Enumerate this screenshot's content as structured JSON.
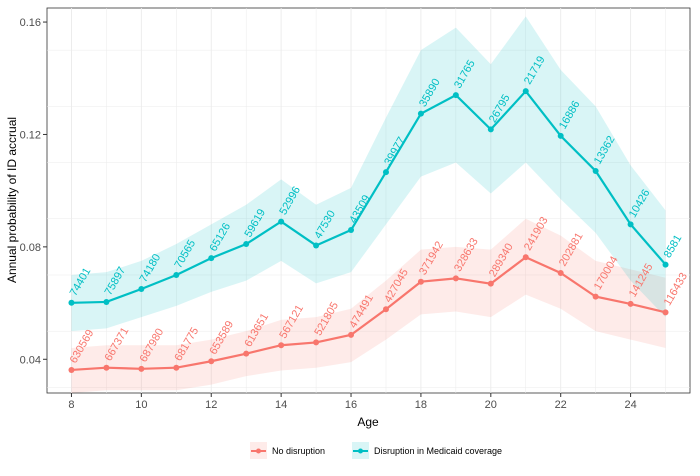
{
  "chart_data": {
    "type": "line",
    "title": "",
    "xlabel": "Age",
    "ylabel": "Annual probability of ID accrual",
    "xlim": [
      7.3,
      25.7
    ],
    "ylim": [
      0.028,
      0.165
    ],
    "xticks": [
      8,
      10,
      12,
      14,
      16,
      18,
      20,
      22,
      24
    ],
    "yticks": [
      0.04,
      0.08,
      0.12,
      0.16
    ],
    "ytick_labels": [
      "0.04",
      "0.08",
      "0.12",
      "0.16"
    ],
    "grid": true,
    "legend_position": "bottom",
    "x": [
      8,
      9,
      10,
      11,
      12,
      13,
      14,
      15,
      16,
      17,
      18,
      19,
      20,
      21,
      22,
      23,
      24,
      25
    ],
    "series": [
      {
        "name": "No disruption",
        "color": "#F8766D",
        "values": [
          0.0362,
          0.037,
          0.0366,
          0.037,
          0.0393,
          0.042,
          0.045,
          0.046,
          0.0487,
          0.0578,
          0.0676,
          0.0688,
          0.0669,
          0.0763,
          0.0707,
          0.0623,
          0.0597,
          0.0567
        ],
        "lower": [
          0.028,
          0.029,
          0.029,
          0.029,
          0.031,
          0.034,
          0.036,
          0.037,
          0.039,
          0.047,
          0.056,
          0.057,
          0.055,
          0.063,
          0.058,
          0.05,
          0.047,
          0.044
        ],
        "upper": [
          0.044,
          0.045,
          0.045,
          0.045,
          0.047,
          0.05,
          0.054,
          0.055,
          0.058,
          0.068,
          0.079,
          0.08,
          0.079,
          0.09,
          0.084,
          0.075,
          0.072,
          0.069
        ],
        "labels": [
          "630569",
          "667371",
          "687980",
          "681775",
          "653589",
          "613651",
          "567121",
          "521805",
          "474491",
          "427045",
          "371942",
          "328633",
          "289340",
          "241903",
          "202881",
          "170004",
          "141245",
          "116433"
        ]
      },
      {
        "name": "Disruption in Medicaid coverage",
        "color": "#00BFC4",
        "values": [
          0.0601,
          0.0604,
          0.065,
          0.07,
          0.076,
          0.081,
          0.089,
          0.0805,
          0.086,
          0.1066,
          0.1274,
          0.134,
          0.1218,
          0.1354,
          0.1195,
          0.107,
          0.088,
          0.0737
        ],
        "lower": [
          0.05,
          0.051,
          0.055,
          0.059,
          0.064,
          0.068,
          0.075,
          0.067,
          0.071,
          0.088,
          0.105,
          0.11,
          0.099,
          0.11,
          0.097,
          0.085,
          0.068,
          0.055
        ],
        "upper": [
          0.07,
          0.071,
          0.075,
          0.081,
          0.088,
          0.095,
          0.104,
          0.095,
          0.101,
          0.126,
          0.15,
          0.158,
          0.145,
          0.162,
          0.143,
          0.13,
          0.109,
          0.093
        ],
        "labels": [
          "74401",
          "75897",
          "74180",
          "70565",
          "65126",
          "59619",
          "52996",
          "47530",
          "43509",
          "39977",
          "35890",
          "31765",
          "26795",
          "21719",
          "16886",
          "13362",
          "10426",
          "8581"
        ]
      }
    ]
  }
}
